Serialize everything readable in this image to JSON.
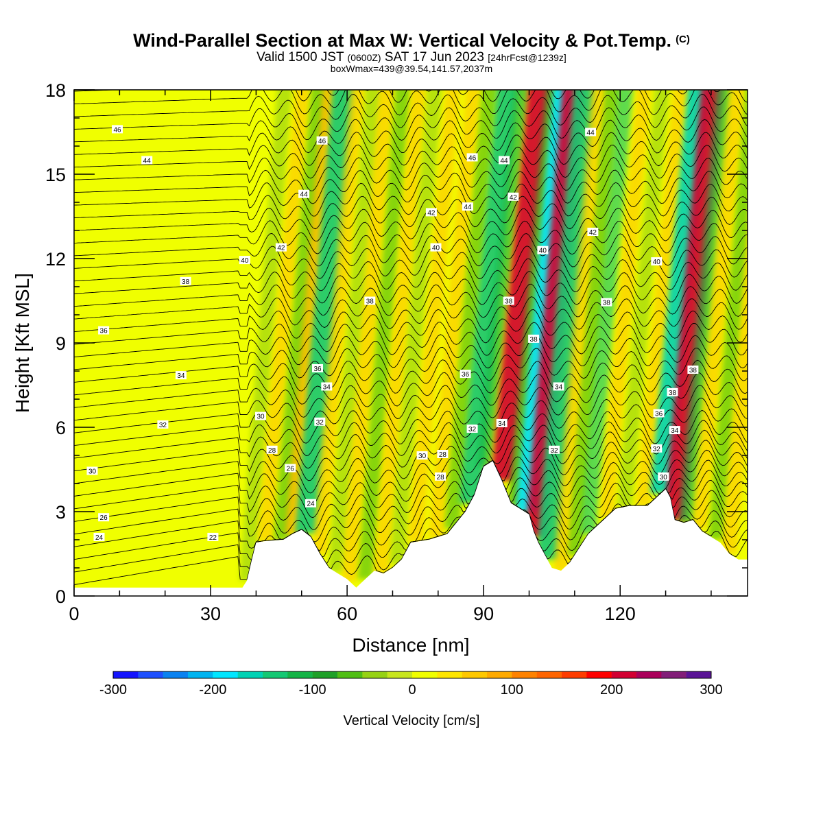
{
  "title": {
    "main": "Wind-Parallel Section at Max W: Vertical Velocity & Pot.Temp.",
    "copyright": "(C)",
    "valid_prefix": "Valid 1500 JST",
    "valid_utc": "(0600Z)",
    "valid_date": "SAT 17 Jun 2023",
    "forecast": "[24hrFcst@1239z]",
    "boxwmax": "boxWmax=439@39.54,141.57,2037m"
  },
  "colorbar": {
    "label": "Vertical Velocity [cm/s]",
    "tick_labels": [
      "-300",
      "-200",
      "-100",
      "0",
      "100",
      "200",
      "300"
    ],
    "colors": [
      "#1414ff",
      "#1e50ff",
      "#0a82f0",
      "#00b4f0",
      "#00e6ff",
      "#00d2b4",
      "#14c873",
      "#14b446",
      "#1ea028",
      "#50be14",
      "#96d214",
      "#c8e61e",
      "#f0ff00",
      "#ffe600",
      "#ffc800",
      "#ffaa00",
      "#ff8200",
      "#ff6400",
      "#ff3c00",
      "#ff0000",
      "#d20032",
      "#aa005a",
      "#821e78",
      "#5a1496"
    ]
  },
  "chart_data": {
    "type": "heatmap",
    "xlabel": "Distance [nm]",
    "ylabel": "Height [Kft MSL]",
    "xlim": [
      0,
      148
    ],
    "ylim": [
      0,
      18
    ],
    "x_ticks": [
      0,
      30,
      60,
      90,
      120
    ],
    "x_minor_step": 10,
    "y_ticks": [
      0,
      3,
      6,
      9,
      12,
      15,
      18
    ],
    "y_minor_step": 1,
    "color_field": "vertical velocity [cm/s]",
    "color_range": [
      -300,
      300
    ],
    "contour_field": "potential temperature [C]",
    "terrain_profile": [
      [
        0,
        0.3
      ],
      [
        37,
        0.3
      ],
      [
        38,
        0.55
      ],
      [
        39,
        1.25
      ],
      [
        40,
        1.9
      ],
      [
        42,
        1.95
      ],
      [
        46,
        2.0
      ],
      [
        48,
        2.2
      ],
      [
        50,
        2.35
      ],
      [
        52,
        2.1
      ],
      [
        54,
        1.5
      ],
      [
        56,
        1.0
      ],
      [
        58,
        0.8
      ],
      [
        60,
        0.6
      ],
      [
        62,
        0.3
      ],
      [
        64,
        0.6
      ],
      [
        66,
        0.9
      ],
      [
        68,
        0.8
      ],
      [
        70,
        1.0
      ],
      [
        72,
        1.3
      ],
      [
        74,
        1.9
      ],
      [
        78,
        2.0
      ],
      [
        82,
        2.2
      ],
      [
        84,
        2.6
      ],
      [
        86,
        3.0
      ],
      [
        88,
        3.6
      ],
      [
        90,
        4.6
      ],
      [
        92,
        4.8
      ],
      [
        94,
        4.1
      ],
      [
        96,
        3.3
      ],
      [
        98,
        3.1
      ],
      [
        100,
        2.9
      ],
      [
        101,
        2.3
      ],
      [
        102,
        1.9
      ],
      [
        103,
        1.6
      ],
      [
        105,
        1.0
      ],
      [
        107,
        0.9
      ],
      [
        109,
        1.2
      ],
      [
        111,
        1.7
      ],
      [
        113,
        2.2
      ],
      [
        115,
        2.5
      ],
      [
        117,
        2.8
      ],
      [
        119,
        3.1
      ],
      [
        122,
        3.2
      ],
      [
        126,
        3.2
      ],
      [
        128,
        3.5
      ],
      [
        130,
        3.8
      ],
      [
        131,
        3.5
      ],
      [
        132,
        2.7
      ],
      [
        134,
        2.6
      ],
      [
        136,
        2.7
      ],
      [
        138,
        2.3
      ],
      [
        140,
        2.1
      ],
      [
        142,
        1.9
      ],
      [
        144,
        1.5
      ],
      [
        146,
        1.3
      ],
      [
        148,
        1.3
      ]
    ],
    "updraft_bands": [
      {
        "x": 38,
        "w": -40
      },
      {
        "x": 42,
        "w": 60
      },
      {
        "x": 45.5,
        "w": -70
      },
      {
        "x": 48,
        "w": 80
      },
      {
        "x": 51,
        "w": -140
      },
      {
        "x": 54,
        "w": 70
      },
      {
        "x": 57.5,
        "w": -50
      },
      {
        "x": 60.5,
        "w": 60
      },
      {
        "x": 64,
        "w": -60
      },
      {
        "x": 67.5,
        "w": 60
      },
      {
        "x": 71,
        "w": -50
      },
      {
        "x": 75,
        "w": 60
      },
      {
        "x": 79.5,
        "w": 70
      },
      {
        "x": 83,
        "w": -60
      },
      {
        "x": 87,
        "w": -150
      },
      {
        "x": 90,
        "w": -120
      },
      {
        "x": 94,
        "w": 200
      },
      {
        "x": 97,
        "w": -80
      },
      {
        "x": 99.5,
        "w": -200
      },
      {
        "x": 101.5,
        "w": 200
      },
      {
        "x": 104,
        "w": -150
      },
      {
        "x": 107,
        "w": 60
      },
      {
        "x": 110,
        "w": -60
      },
      {
        "x": 113,
        "w": -130
      },
      {
        "x": 117,
        "w": 70
      },
      {
        "x": 121,
        "w": -50
      },
      {
        "x": 125,
        "w": 60
      },
      {
        "x": 129,
        "w": -170
      },
      {
        "x": 132,
        "w": 220
      },
      {
        "x": 134.5,
        "w": -110
      },
      {
        "x": 137.5,
        "w": 60
      },
      {
        "x": 141,
        "w": -60
      },
      {
        "x": 144,
        "w": 50
      }
    ],
    "contour_labels": [
      {
        "x": 9.5,
        "y": 16.6,
        "text": "46"
      },
      {
        "x": 16,
        "y": 15.5,
        "text": "44"
      },
      {
        "x": 37.5,
        "y": 11.95,
        "text": "40"
      },
      {
        "x": 24.5,
        "y": 11.2,
        "text": "38"
      },
      {
        "x": 6.5,
        "y": 9.45,
        "text": "36"
      },
      {
        "x": 23.5,
        "y": 7.85,
        "text": "34"
      },
      {
        "x": 19.5,
        "y": 6.1,
        "text": "32"
      },
      {
        "x": 4,
        "y": 4.45,
        "text": "30"
      },
      {
        "x": 6.5,
        "y": 2.8,
        "text": "26"
      },
      {
        "x": 5.5,
        "y": 2.1,
        "text": "24"
      },
      {
        "x": 30.5,
        "y": 2.1,
        "text": "22"
      },
      {
        "x": 54.5,
        "y": 16.2,
        "text": "46"
      },
      {
        "x": 50.5,
        "y": 14.3,
        "text": "44"
      },
      {
        "x": 45.5,
        "y": 12.4,
        "text": "42"
      },
      {
        "x": 53.5,
        "y": 8.1,
        "text": "36"
      },
      {
        "x": 55.5,
        "y": 7.45,
        "text": "34"
      },
      {
        "x": 54,
        "y": 6.2,
        "text": "32"
      },
      {
        "x": 41,
        "y": 6.4,
        "text": "30"
      },
      {
        "x": 43.5,
        "y": 5.2,
        "text": "28"
      },
      {
        "x": 47.5,
        "y": 4.55,
        "text": "26"
      },
      {
        "x": 52,
        "y": 3.3,
        "text": "24"
      },
      {
        "x": 65,
        "y": 10.5,
        "text": "38"
      },
      {
        "x": 78.5,
        "y": 13.65,
        "text": "42"
      },
      {
        "x": 79.5,
        "y": 12.4,
        "text": "40"
      },
      {
        "x": 87.5,
        "y": 15.6,
        "text": "46"
      },
      {
        "x": 86.5,
        "y": 13.85,
        "text": "44"
      },
      {
        "x": 86,
        "y": 7.9,
        "text": "36"
      },
      {
        "x": 76.5,
        "y": 5.0,
        "text": "30"
      },
      {
        "x": 81,
        "y": 5.05,
        "text": "28"
      },
      {
        "x": 80.5,
        "y": 4.25,
        "text": "28"
      },
      {
        "x": 87.5,
        "y": 5.95,
        "text": "32"
      },
      {
        "x": 94.5,
        "y": 15.5,
        "text": "44"
      },
      {
        "x": 96.5,
        "y": 14.2,
        "text": "42"
      },
      {
        "x": 103,
        "y": 12.3,
        "text": "40"
      },
      {
        "x": 95.5,
        "y": 10.5,
        "text": "38"
      },
      {
        "x": 101,
        "y": 9.15,
        "text": "38"
      },
      {
        "x": 106.5,
        "y": 7.45,
        "text": "34"
      },
      {
        "x": 94,
        "y": 6.15,
        "text": "34"
      },
      {
        "x": 105.5,
        "y": 5.2,
        "text": "32"
      },
      {
        "x": 113.5,
        "y": 16.5,
        "text": "44"
      },
      {
        "x": 114,
        "y": 12.95,
        "text": "42"
      },
      {
        "x": 117,
        "y": 10.45,
        "text": "38"
      },
      {
        "x": 128,
        "y": 11.9,
        "text": "40"
      },
      {
        "x": 136,
        "y": 8.05,
        "text": "38"
      },
      {
        "x": 131.5,
        "y": 7.25,
        "text": "38"
      },
      {
        "x": 128.5,
        "y": 6.5,
        "text": "36"
      },
      {
        "x": 132,
        "y": 5.9,
        "text": "34"
      },
      {
        "x": 128,
        "y": 5.25,
        "text": "32"
      },
      {
        "x": 129.5,
        "y": 4.25,
        "text": "30"
      }
    ]
  }
}
